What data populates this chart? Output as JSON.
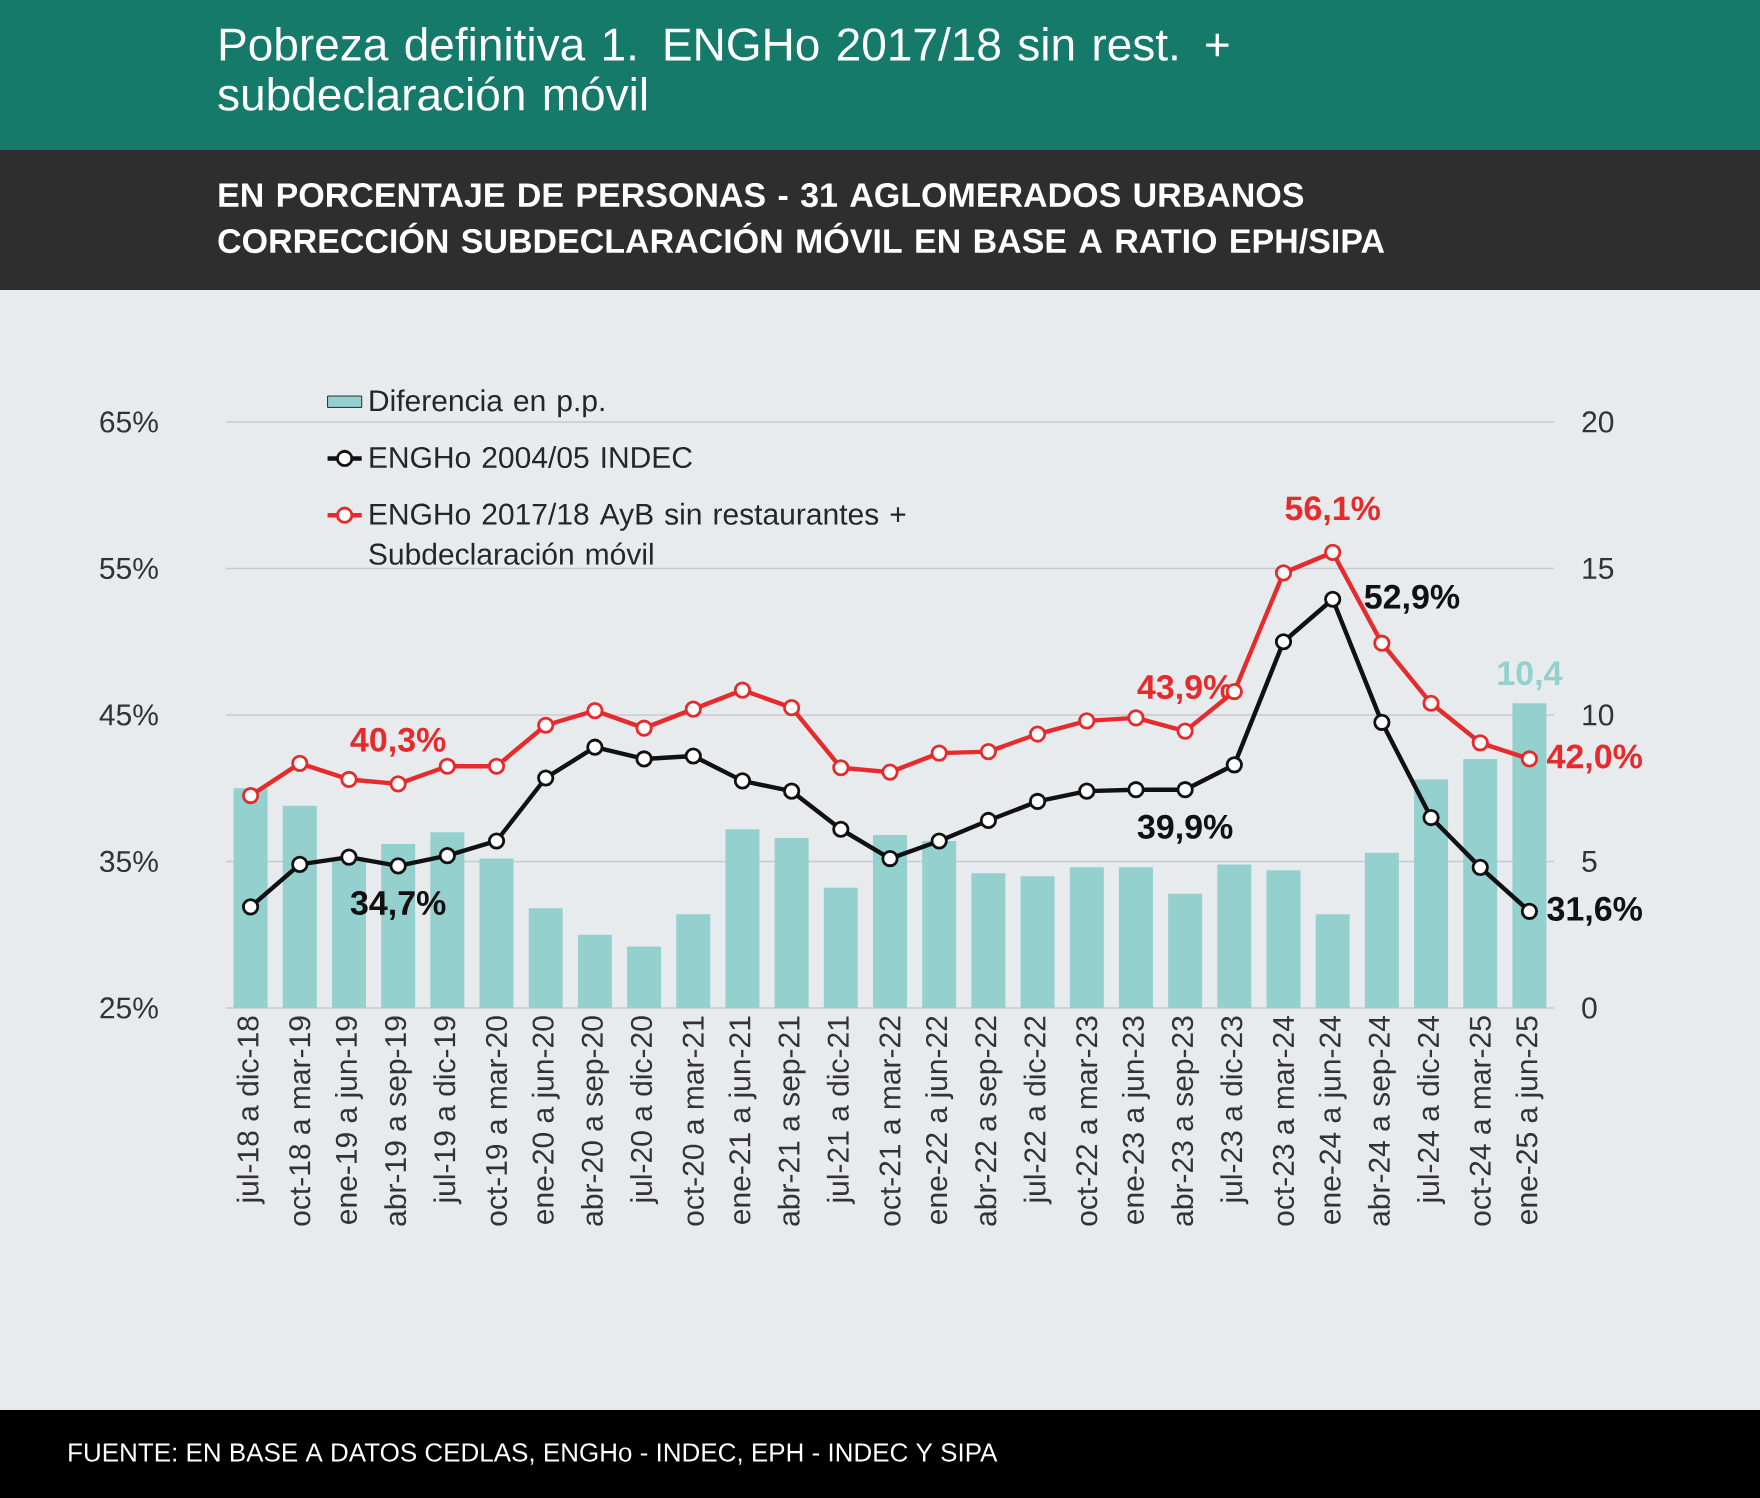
{
  "chart_data": {
    "type": "line",
    "title": "Pobreza definitiva 1. ENGHo 2017/18 sin rest. + subdeclaración móvil",
    "subtitle": "EN PORCENTAJE DE PERSONAS - 31 AGLOMERADOS URBANOS CORRECCIÓN SUBDECLARACIÓN MÓVIL EN BASE A RATIO EPH/SIPA",
    "annotations": [
      "FUENTE: EN BASE A DATOS CEDLAS, ENGHo - INDEC, EPH - INDEC Y SIPA"
    ],
    "categories": [
      "jul-18 a dic-18",
      "oct-18 a mar-19",
      "ene-19 a jun-19",
      "abr-19 a sep-19",
      "jul-19 a dic-19",
      "oct-19 a mar-20",
      "ene-20 a jun-20",
      "abr-20 a sep-20",
      "jul-20 a dic-20",
      "oct-20 a mar-21",
      "ene-21 a jun-21",
      "abr-21 a sep-21",
      "jul-21 a dic-21",
      "oct-21 a mar-22",
      "ene-22 a jun-22",
      "abr-22 a sep-22",
      "jul-22 a dic-22",
      "oct-22 a mar-23",
      "ene-23 a jun-23",
      "abr-23 a sep-23",
      "jul-23 a dic-23",
      "oct-23 a mar-24",
      "ene-24 a jun-24",
      "abr-24 a sep-24",
      "jul-24 a dic-24",
      "oct-24 a mar-25",
      "ene-25 a jun-25"
    ],
    "series": [
      {
        "name": "Diferencia en p.p.",
        "type": "bar",
        "axis": "y2",
        "color": "#93d0ce",
        "values": [
          7.5,
          6.9,
          5.1,
          5.6,
          6.0,
          5.1,
          3.4,
          2.5,
          2.1,
          3.2,
          6.1,
          5.8,
          4.1,
          5.9,
          5.7,
          4.6,
          4.5,
          4.8,
          4.8,
          3.9,
          4.9,
          4.7,
          3.2,
          5.3,
          7.8,
          8.5,
          10.4
        ],
        "value_labels": [
          null,
          null,
          null,
          null,
          null,
          null,
          null,
          null,
          null,
          null,
          null,
          null,
          null,
          null,
          null,
          null,
          null,
          null,
          null,
          null,
          null,
          null,
          null,
          null,
          null,
          null,
          "10,4"
        ]
      },
      {
        "name": "ENGHo 2004/05 INDEC",
        "color": "#111111",
        "values": [
          31.9,
          34.8,
          35.3,
          34.7,
          35.4,
          36.4,
          40.7,
          42.8,
          42.0,
          42.2,
          40.5,
          39.8,
          37.2,
          35.2,
          36.4,
          37.8,
          39.1,
          39.8,
          39.9,
          39.9,
          41.6,
          50.0,
          52.9,
          44.5,
          38.0,
          34.6,
          31.6
        ],
        "value_labels": [
          null,
          null,
          null,
          "34,7%",
          null,
          null,
          null,
          null,
          null,
          null,
          null,
          null,
          null,
          null,
          null,
          null,
          null,
          null,
          null,
          "39,9%",
          null,
          null,
          "52,9%",
          null,
          null,
          null,
          "31,6%"
        ]
      },
      {
        "name": "ENGHo 2017/18 AyB sin restaurantes + Subdeclaración móvil",
        "color": "#e52b2c",
        "values": [
          39.5,
          41.7,
          40.6,
          40.3,
          41.5,
          41.5,
          44.3,
          45.3,
          44.1,
          45.4,
          46.7,
          45.5,
          41.4,
          41.1,
          42.4,
          42.5,
          43.7,
          44.6,
          44.8,
          43.9,
          46.6,
          54.7,
          56.1,
          49.9,
          45.8,
          43.1,
          42.0
        ],
        "value_labels": [
          null,
          null,
          null,
          "40,3%",
          null,
          null,
          null,
          null,
          null,
          null,
          null,
          null,
          null,
          null,
          null,
          null,
          null,
          null,
          null,
          "43,9%",
          null,
          null,
          "56,1%",
          null,
          null,
          null,
          "42,0%"
        ]
      }
    ],
    "ylim": [
      25,
      65
    ],
    "yticks": [
      {
        "value": 25,
        "label": "25%"
      },
      {
        "value": 35,
        "label": "35%"
      },
      {
        "value": 45,
        "label": "45%"
      },
      {
        "value": 55,
        "label": "55%"
      },
      {
        "value": 65,
        "label": "65%"
      }
    ],
    "y2lim": [
      0,
      20
    ],
    "y2ticks": [
      0,
      5,
      10,
      15,
      20
    ],
    "grid": "y",
    "legend": "top left",
    "marker": "circle",
    "line_style": "solid"
  }
}
